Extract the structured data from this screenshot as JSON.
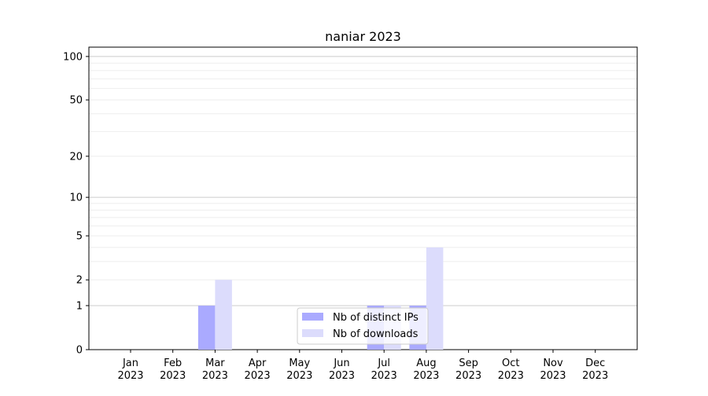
{
  "chart_data": {
    "type": "bar",
    "title": "naniar 2023",
    "xlabel": "",
    "ylabel": "",
    "yscale": "log(1+y)",
    "ylim": [
      0,
      116
    ],
    "yticks": [
      0,
      1,
      2,
      5,
      10,
      20,
      50,
      100
    ],
    "grid": true,
    "legend_placement": "bottom-center",
    "categories": [
      "Jan\n2023",
      "Feb\n2023",
      "Mar\n2023",
      "Apr\n2023",
      "May\n2023",
      "Jun\n2023",
      "Jul\n2023",
      "Aug\n2023",
      "Sep\n2023",
      "Oct\n2023",
      "Nov\n2023",
      "Dec\n2023"
    ],
    "series": [
      {
        "name": "Nb of distinct IPs",
        "color": "#aaaaff",
        "values": [
          0,
          0,
          1,
          0,
          0,
          0,
          1,
          1,
          0,
          0,
          0,
          0
        ]
      },
      {
        "name": "Nb of downloads",
        "color": "#dcdcfc",
        "values": [
          0,
          0,
          2,
          0,
          0,
          0,
          1,
          4,
          0,
          0,
          0,
          0
        ]
      }
    ]
  }
}
